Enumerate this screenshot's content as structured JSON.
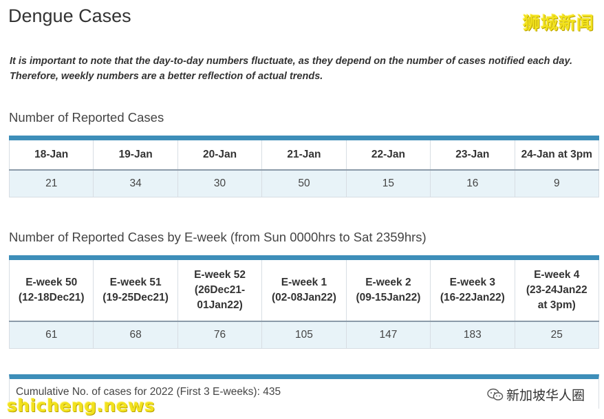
{
  "page": {
    "title": "Dengue Cases",
    "note_line1": "It is important to note that the day-to-day numbers fluctuate, as they depend on the number of cases notified each day.",
    "note_line2": "Therefore, weekly numbers are a better reflection of actual trends."
  },
  "watermarks": {
    "top_right": "狮城新闻",
    "bottom_right": "新加坡华人圈",
    "bottom_left": "shicheng.news"
  },
  "daily": {
    "title": "Number of Reported Cases",
    "headers": [
      "18-Jan",
      "19-Jan",
      "20-Jan",
      "21-Jan",
      "22-Jan",
      "23-Jan",
      "24-Jan at 3pm"
    ],
    "values": [
      "21",
      "34",
      "30",
      "50",
      "15",
      "16",
      "9"
    ]
  },
  "eweek": {
    "title": "Number of Reported Cases by E-week (from Sun 0000hrs to Sat 2359hrs)",
    "headers": [
      [
        "E-week 50",
        "(12-18Dec21)"
      ],
      [
        "E-week 51",
        "(19-25Dec21)"
      ],
      [
        "E-week 52",
        "(26Dec21-",
        "01Jan22)"
      ],
      [
        "E-week 1",
        "(02-08Jan22)"
      ],
      [
        "E-week 2",
        "(09-15Jan22)"
      ],
      [
        "E-week 3",
        "(16-22Jan22)"
      ],
      [
        "E-week 4",
        "(23-24Jan22",
        "at 3pm)"
      ]
    ],
    "values": [
      "61",
      "68",
      "76",
      "105",
      "147",
      "183",
      "25"
    ]
  },
  "cumulative": {
    "text": "Cumulative No. of cases for 2022 (First 3 E-weeks): 435"
  },
  "colors": {
    "accent_bar": "#3d8eb9",
    "value_row_bg": "#e8f3f8",
    "watermark_yellow": "#f2e21d"
  }
}
